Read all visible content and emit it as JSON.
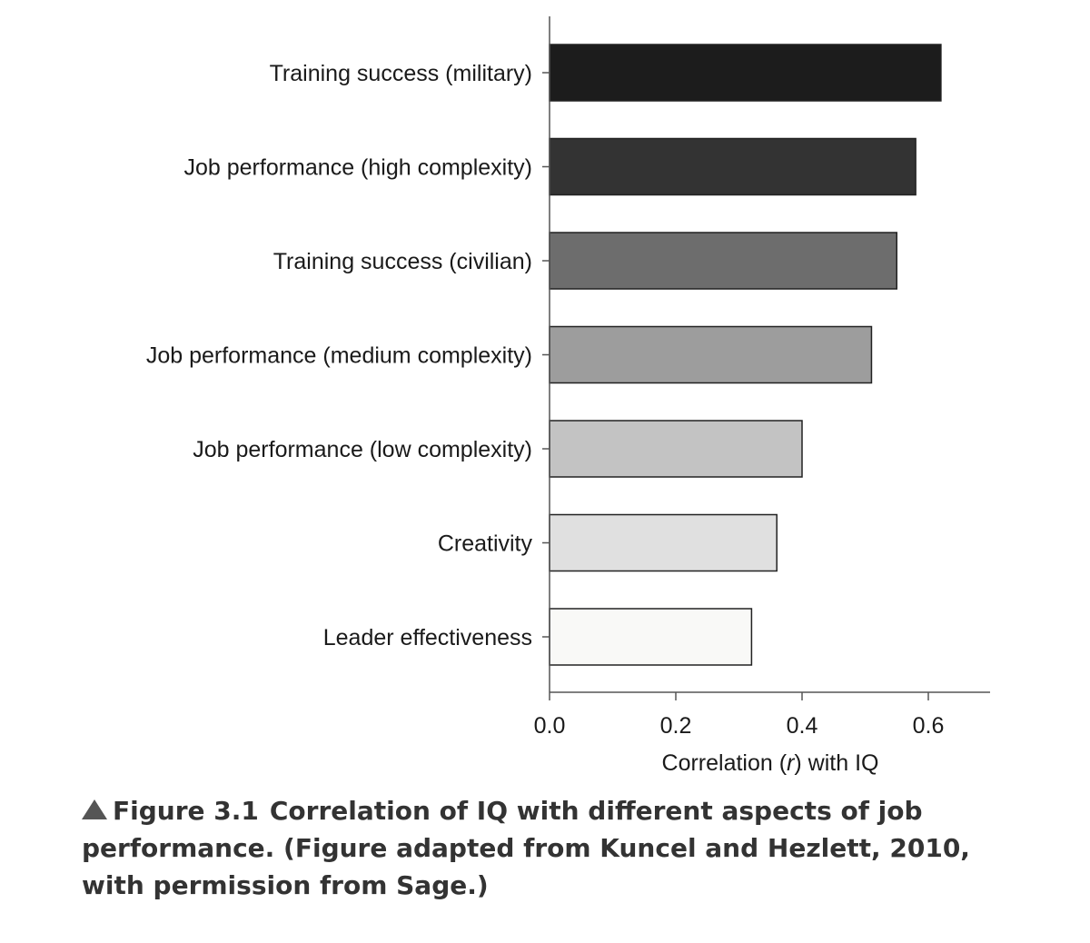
{
  "chart_data": {
    "type": "bar",
    "orientation": "horizontal",
    "categories": [
      "Training success (military)",
      "Job performance (high complexity)",
      "Training success (civilian)",
      "Job performance (medium complexity)",
      "Job performance (low complexity)",
      "Creativity",
      "Leader effectiveness"
    ],
    "values": [
      0.62,
      0.58,
      0.55,
      0.51,
      0.4,
      0.36,
      0.32
    ],
    "colors": [
      "#1c1c1c",
      "#333333",
      "#6d6d6d",
      "#9d9d9d",
      "#c3c3c3",
      "#e0e0e0",
      "#f9f9f7"
    ],
    "xlabel_parts": [
      "Correlation (",
      "r",
      ") with IQ"
    ],
    "xlim": [
      0,
      0.7
    ],
    "xticks": [
      0.0,
      0.2,
      0.4,
      0.6
    ],
    "xtick_labels": [
      "0.0",
      "0.2",
      "0.4",
      "0.6"
    ],
    "grid": false
  },
  "caption": {
    "figure_number": "Figure 3.1",
    "text": "Correlation of IQ with different aspects of job performance. (Figure adapted from Kuncel and Hezlett, 2010, with permission from Sage.)"
  }
}
